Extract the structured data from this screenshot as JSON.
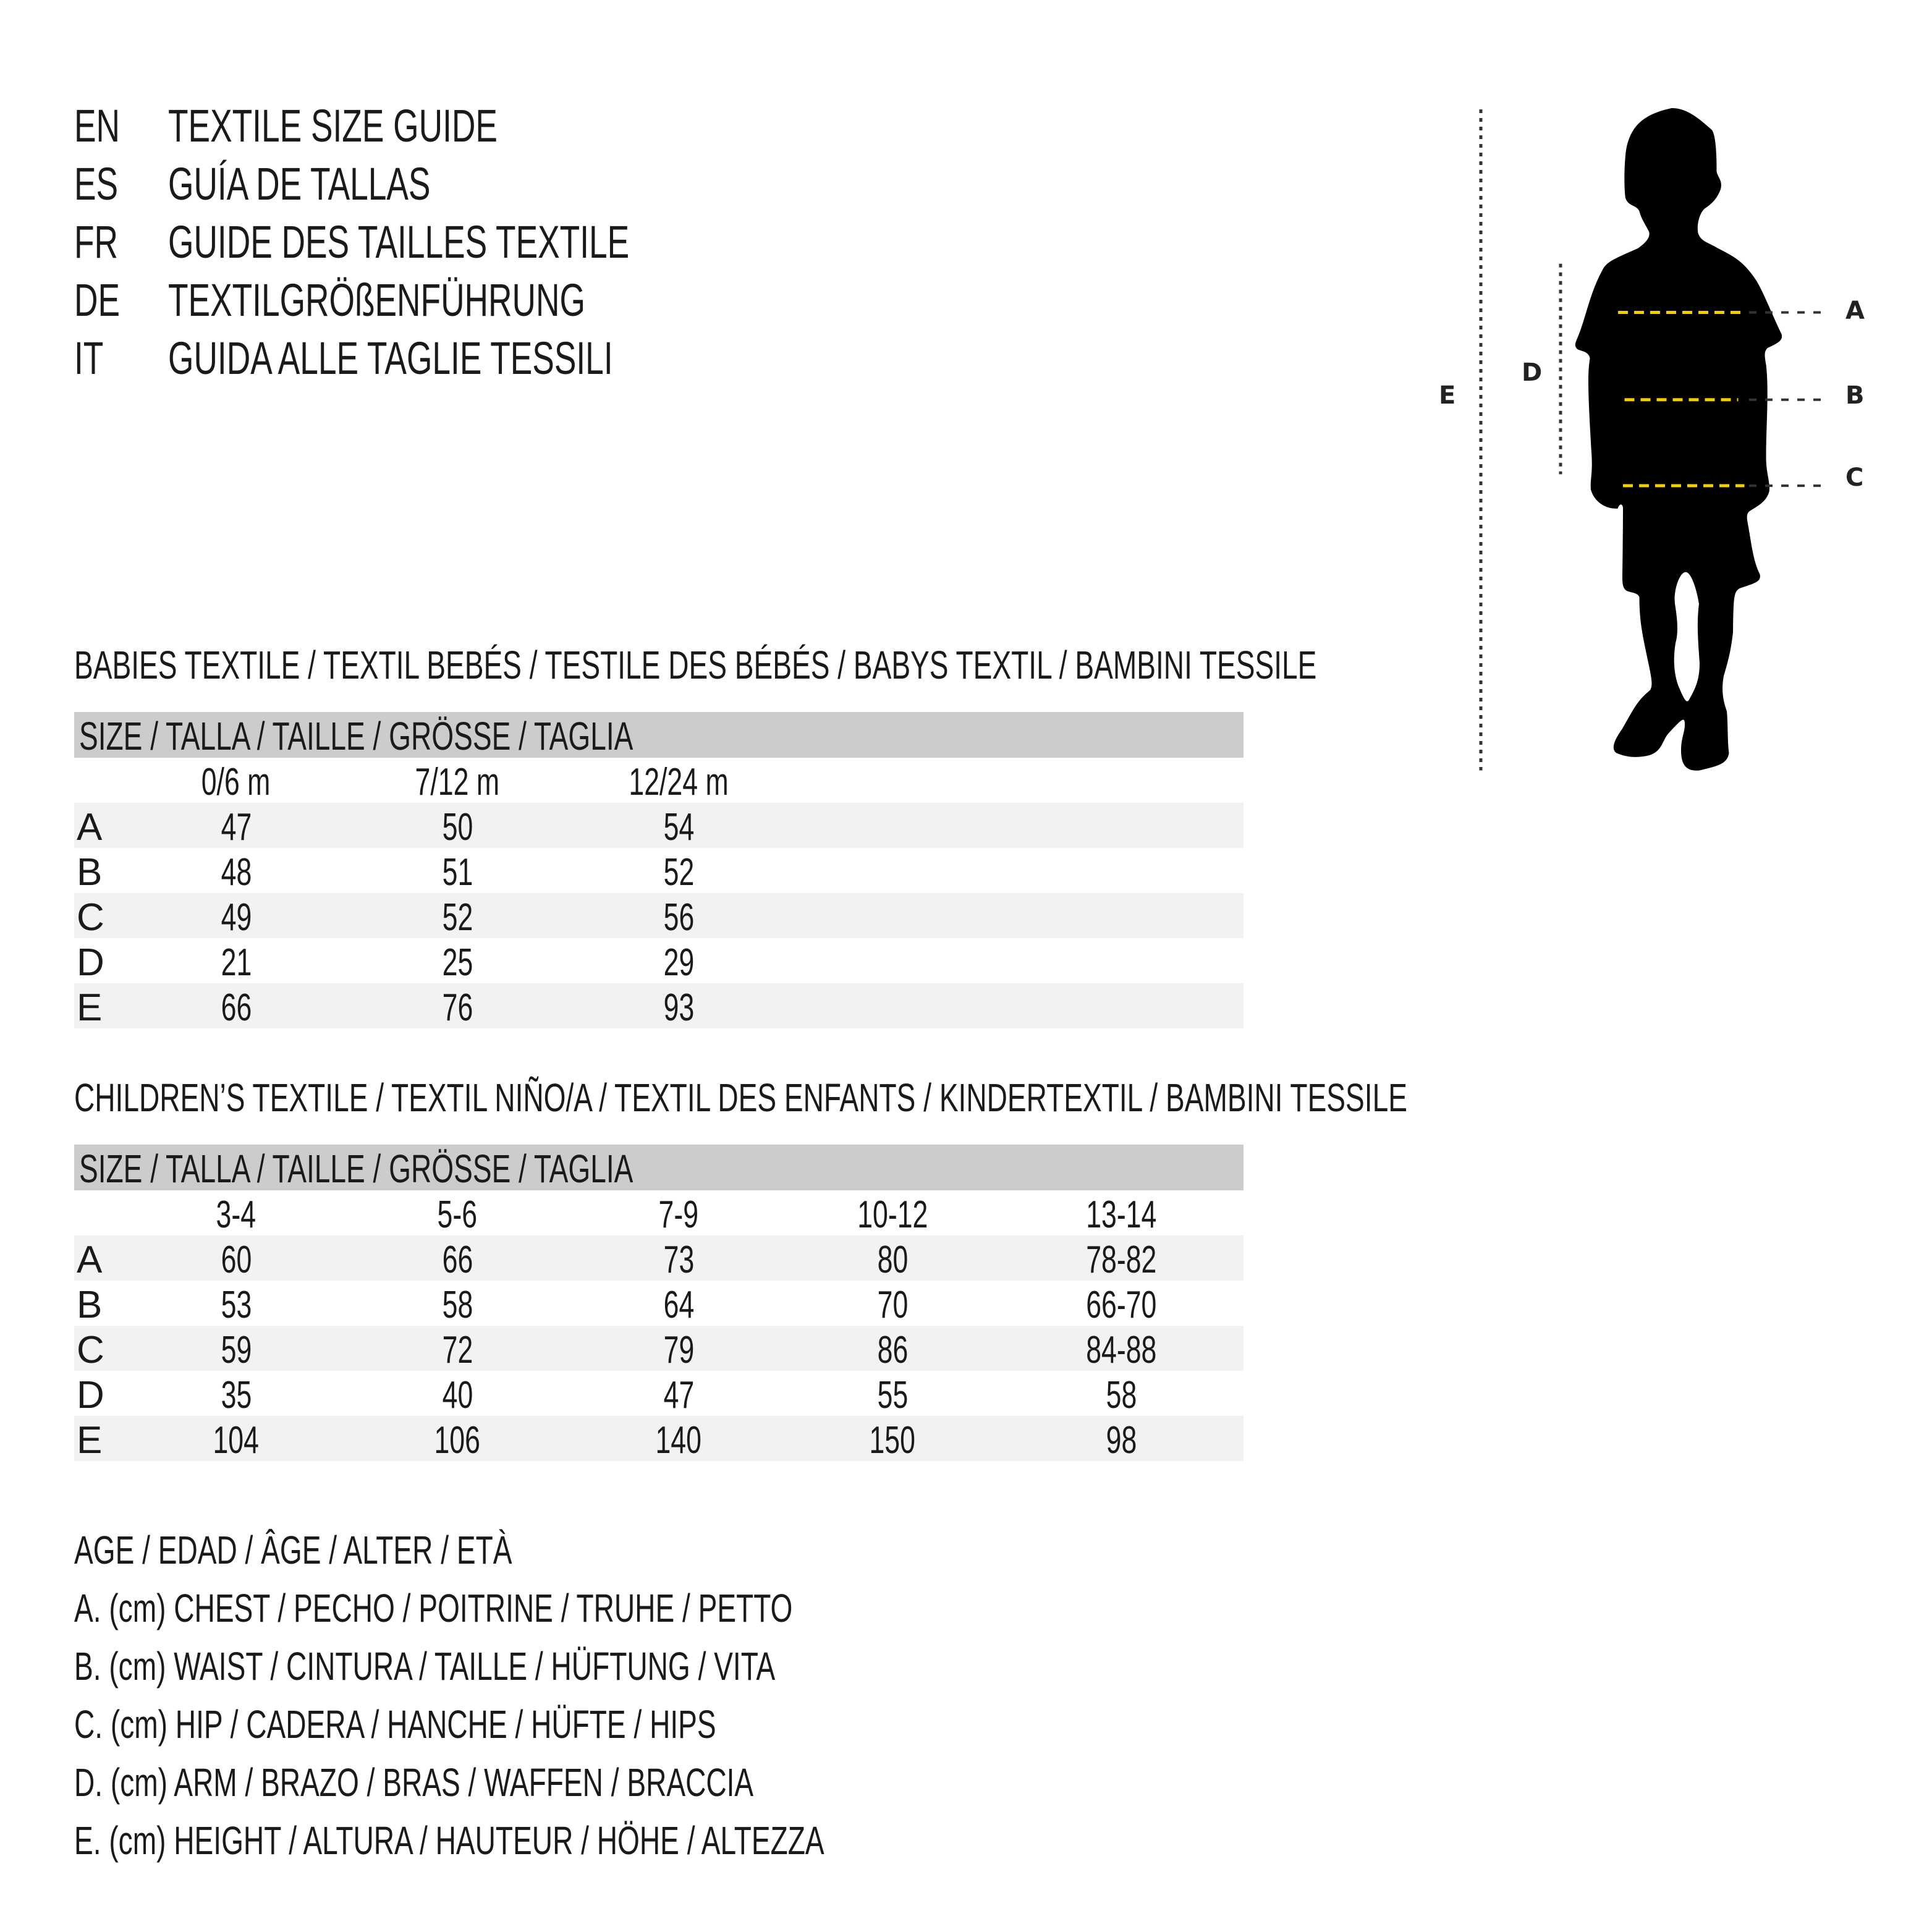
{
  "titles": [
    {
      "lang": "EN",
      "text": "TEXTILE SIZE GUIDE"
    },
    {
      "lang": "ES",
      "text": "GUÍA DE TALLAS"
    },
    {
      "lang": "FR",
      "text": "GUIDE DES TAILLES TEXTILE"
    },
    {
      "lang": "DE",
      "text": "TEXTILGRÖßENFÜHRUNG"
    },
    {
      "lang": "IT",
      "text": "GUIDA ALLE TAGLIE TESSILI"
    }
  ],
  "babies": {
    "heading": "BABIES TEXTILE / TEXTIL BEBÉS / TESTILE DES BÉBÉS / BABYS TEXTIL / BAMBINI TESSILE",
    "size_header": "SIZE / TALLA / TAILLE / GRÖSSE / TAGLIA",
    "columns": [
      "0/6 m",
      "7/12 m",
      "12/24 m"
    ],
    "rows": [
      {
        "label": "A",
        "values": [
          "47",
          "50",
          "54"
        ]
      },
      {
        "label": "B",
        "values": [
          "48",
          "51",
          "52"
        ]
      },
      {
        "label": "C",
        "values": [
          "49",
          "52",
          "56"
        ]
      },
      {
        "label": "D",
        "values": [
          "21",
          "25",
          "29"
        ]
      },
      {
        "label": "E",
        "values": [
          "66",
          "76",
          "93"
        ]
      }
    ]
  },
  "children": {
    "heading": "CHILDREN’S TEXTILE / TEXTIL NIÑO/A / TEXTIL DES ENFANTS / KINDERTEXTIL / BAMBINI TESSILE",
    "size_header": "SIZE / TALLA / TAILLE / GRÖSSE / TAGLIA",
    "columns": [
      "3-4",
      "5-6",
      "7-9",
      "10-12",
      "13-14"
    ],
    "rows": [
      {
        "label": "A",
        "values": [
          "60",
          "66",
          "73",
          "80",
          "78-82"
        ]
      },
      {
        "label": "B",
        "values": [
          "53",
          "58",
          "64",
          "70",
          "66-70"
        ]
      },
      {
        "label": "C",
        "values": [
          "59",
          "72",
          "79",
          "86",
          "84-88"
        ]
      },
      {
        "label": "D",
        "values": [
          "35",
          "40",
          "47",
          "55",
          "58"
        ]
      },
      {
        "label": "E",
        "values": [
          "104",
          "106",
          "140",
          "150",
          "98"
        ]
      }
    ]
  },
  "legend": [
    "AGE / EDAD / ÂGE / ALTER / ETÀ",
    "A. (cm) CHEST / PECHO / POITRINE / TRUHE / PETTO",
    "B. (cm) WAIST / CINTURA / TAILLE / HÜFTUNG / VITA",
    "C. (cm) HIP / CADERA / HANCHE / HÜFTE / HIPS",
    "D. (cm) ARM / BRAZO / BRAS / WAFFEN / BRACCIA",
    "E. (cm) HEIGHT / ALTURA / HAUTEUR / HÖHE / ALTEZZA"
  ],
  "figure": {
    "labels": {
      "a": "A",
      "b": "B",
      "c": "C",
      "d": "D",
      "e": "E"
    },
    "icon": "child-silhouette-icon",
    "colors": {
      "measure_line": "#f2d000",
      "guide_line": "#333333",
      "silhouette": "#000000",
      "header_bg": "#cccccc",
      "row_shade": "#f2f2f2"
    }
  }
}
